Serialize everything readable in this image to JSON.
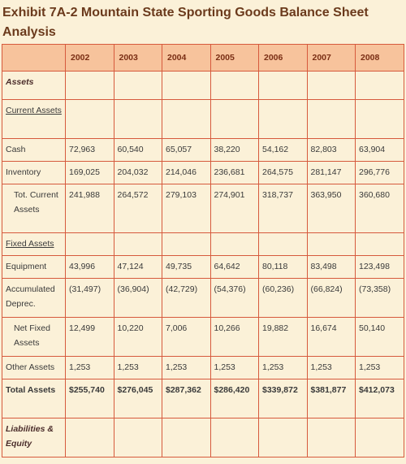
{
  "title_line1": "Exhibit 7A-2 Mountain State Sporting Goods Balance Sheet",
  "title_line2": "Analysis",
  "years": [
    "2002",
    "2003",
    "2004",
    "2005",
    "2006",
    "2007",
    "2008"
  ],
  "rows": {
    "assets": {
      "label": "Assets"
    },
    "current_assets": {
      "label": "Current Assets"
    },
    "cash": {
      "label": "Cash",
      "values": [
        "72,963",
        "60,540",
        "65,057",
        "38,220",
        "54,162",
        "82,803",
        "63,904"
      ]
    },
    "inventory": {
      "label": "Inventory",
      "values": [
        "169,025",
        "204,032",
        "214,046",
        "236,681",
        "264,575",
        "281,147",
        "296,776"
      ]
    },
    "total_current": {
      "label": "Tot. Current Assets",
      "values": [
        "241,988",
        "264,572",
        "279,103",
        "274,901",
        "318,737",
        "363,950",
        "360,680"
      ]
    },
    "fixed_assets": {
      "label": "Fixed Assets"
    },
    "equipment": {
      "label": "Equipment",
      "values": [
        "43,996",
        "47,124",
        "49,735",
        "64,642",
        "80,118",
        "83,498",
        "123,498"
      ]
    },
    "accum_deprec": {
      "label": "Accumulated Deprec.",
      "values": [
        "(31,497)",
        "(36,904)",
        "(42,729)",
        "(54,376)",
        "(60,236)",
        "(66,824)",
        "(73,358)"
      ]
    },
    "net_fixed": {
      "label": "Net Fixed Assets",
      "values": [
        "12,499",
        "10,220",
        "7,006",
        "10,266",
        "19,882",
        "16,674",
        "50,140"
      ]
    },
    "other_assets": {
      "label": "Other Assets",
      "values": [
        "1,253",
        "1,253",
        "1,253",
        "1,253",
        "1,253",
        "1,253",
        "1,253"
      ]
    },
    "total_assets": {
      "label": "Total Assets",
      "values": [
        "$255,740",
        "$276,045",
        "$287,362",
        "$286,420",
        "$339,872",
        "$381,877",
        "$412,073"
      ]
    },
    "liab_equity": {
      "label": "Liabilities & Equity"
    }
  }
}
